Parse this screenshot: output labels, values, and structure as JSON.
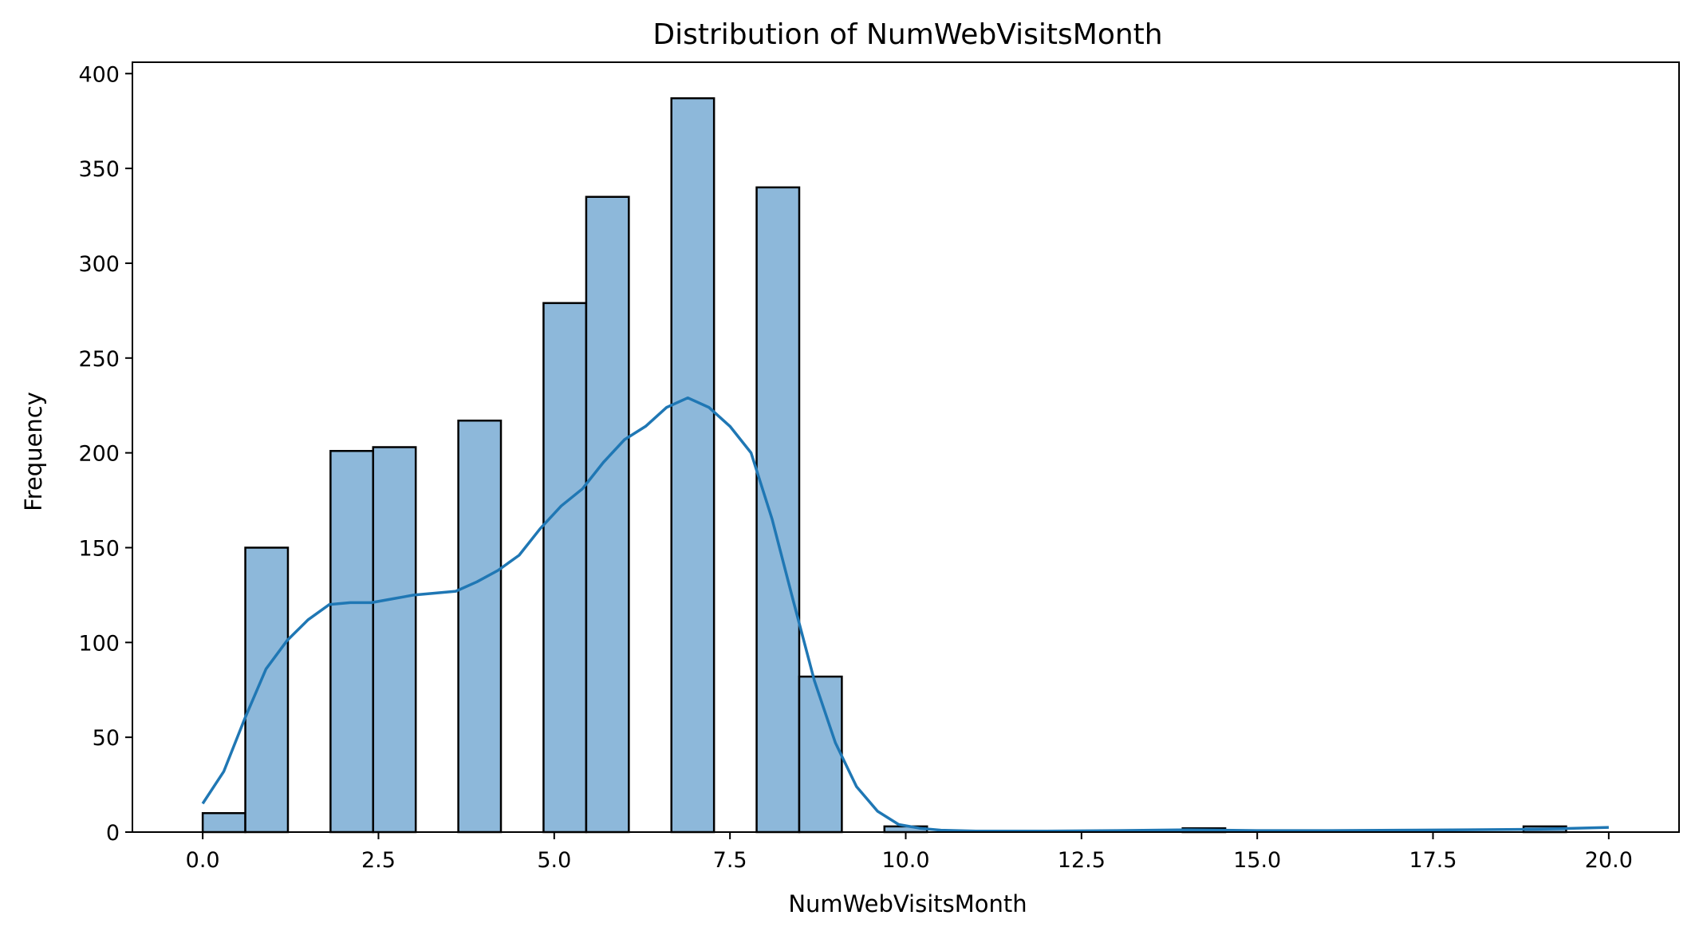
{
  "chart_data": {
    "type": "bar",
    "title": "Distribution of NumWebVisitsMonth",
    "xlabel": "NumWebVisitsMonth",
    "ylabel": "Frequency",
    "xlim": [
      -1.0,
      21.0
    ],
    "ylim": [
      0,
      406
    ],
    "x_ticks": [
      0.0,
      2.5,
      5.0,
      7.5,
      10.0,
      12.5,
      15.0,
      17.5,
      20.0
    ],
    "x_tick_labels": [
      "0.0",
      "2.5",
      "5.0",
      "7.5",
      "10.0",
      "12.5",
      "15.0",
      "17.5",
      "20.0"
    ],
    "y_ticks": [
      0,
      50,
      100,
      150,
      200,
      250,
      300,
      350,
      400
    ],
    "y_tick_labels": [
      "0",
      "50",
      "100",
      "150",
      "200",
      "250",
      "300",
      "350",
      "400"
    ],
    "bin_width": 0.6061,
    "bins": [
      {
        "x0": 0.0,
        "value": 10
      },
      {
        "x0": 0.606,
        "value": 150
      },
      {
        "x0": 1.818,
        "value": 201
      },
      {
        "x0": 2.424,
        "value": 203
      },
      {
        "x0": 3.636,
        "value": 217
      },
      {
        "x0": 4.848,
        "value": 279
      },
      {
        "x0": 5.455,
        "value": 335
      },
      {
        "x0": 6.667,
        "value": 387
      },
      {
        "x0": 7.879,
        "value": 340
      },
      {
        "x0": 8.485,
        "value": 82
      },
      {
        "x0": 9.697,
        "value": 3
      },
      {
        "x0": 13.939,
        "value": 2
      },
      {
        "x0": 18.788,
        "value": 3
      }
    ],
    "kde": {
      "x": [
        0.0,
        0.3,
        0.6,
        0.9,
        1.2,
        1.5,
        1.8,
        2.1,
        2.4,
        2.7,
        3.0,
        3.3,
        3.6,
        3.9,
        4.2,
        4.5,
        4.8,
        5.1,
        5.4,
        5.7,
        6.0,
        6.3,
        6.6,
        6.9,
        7.2,
        7.5,
        7.8,
        8.1,
        8.4,
        8.7,
        9.0,
        9.3,
        9.6,
        9.9,
        10.2,
        10.5,
        11.0,
        12.0,
        13.0,
        14.0,
        15.0,
        16.0,
        17.0,
        18.0,
        19.0,
        20.0
      ],
      "y": [
        15,
        32,
        60,
        86,
        101,
        112,
        120,
        121,
        121,
        123,
        125,
        126,
        127,
        132,
        138,
        146,
        160,
        172,
        181,
        195,
        207,
        214,
        224,
        229,
        224,
        214,
        200,
        165,
        122,
        80,
        47,
        24,
        11,
        4,
        2,
        1,
        0.5,
        0.5,
        0.8,
        1.2,
        0.8,
        0.8,
        1.0,
        1.2,
        1.5,
        2.5
      ]
    },
    "colors": {
      "bar_fill": "#8db8da",
      "bar_edge": "#000000",
      "kde_line": "#1f77b4"
    },
    "grid": false,
    "legend": "none"
  }
}
